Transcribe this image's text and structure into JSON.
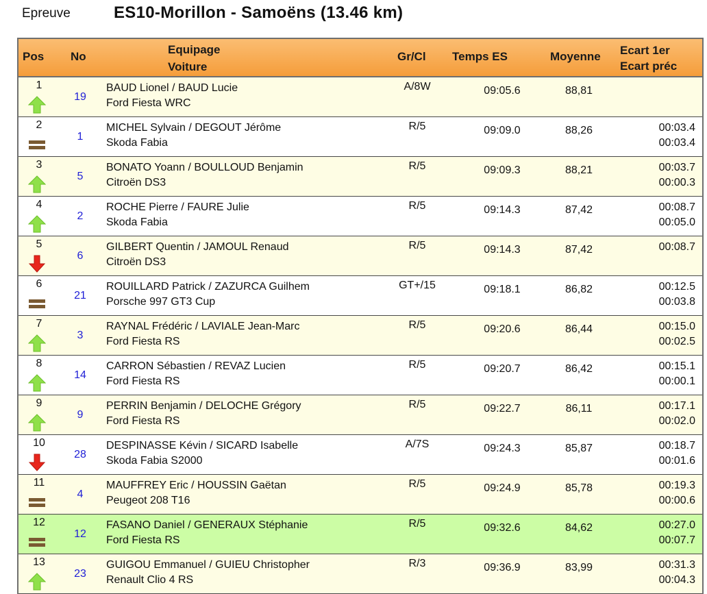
{
  "page": {
    "epreuve_label": "Epreuve",
    "stage_title": "ES10-Morillon - Samoëns (13.46 km)"
  },
  "header": {
    "pos": "Pos",
    "no": "No",
    "equipage": "Equipage",
    "voiture": "Voiture",
    "grcl": "Gr/Cl",
    "temps": "Temps ES",
    "moyenne": "Moyenne",
    "ecart_1er": "Ecart 1er",
    "ecart_prec": "Ecart préc"
  },
  "colors": {
    "header_bg": "#f7a848",
    "row_alt": "#fefde4",
    "row_highlight": "#ccfda5",
    "number_blue": "#1e1ed6",
    "arrow_up": "#8fe04a",
    "arrow_down": "#e8261c",
    "equal_icon": "#7a5a32"
  },
  "rows": [
    {
      "pos": "1",
      "no": "19",
      "crew": "BAUD Lionel / BAUD Lucie",
      "car": "Ford Fiesta WRC",
      "grcl": "A/8W",
      "temps": "09:05.6",
      "moyenne": "88,81",
      "ecart1": "",
      "ecart2": "",
      "trend": "up-arrow-icon"
    },
    {
      "pos": "2",
      "no": "1",
      "crew": "MICHEL Sylvain / DEGOUT Jérôme",
      "car": "Skoda Fabia",
      "grcl": "R/5",
      "temps": "09:09.0",
      "moyenne": "88,26",
      "ecart1": "00:03.4",
      "ecart2": "00:03.4",
      "trend": "equal-icon"
    },
    {
      "pos": "3",
      "no": "5",
      "crew": "BONATO Yoann / BOULLOUD Benjamin",
      "car": "Citroën DS3",
      "grcl": "R/5",
      "temps": "09:09.3",
      "moyenne": "88,21",
      "ecart1": "00:03.7",
      "ecart2": "00:00.3",
      "trend": "up-arrow-icon"
    },
    {
      "pos": "4",
      "no": "2",
      "crew": "ROCHE Pierre / FAURE Julie",
      "car": "Skoda Fabia",
      "grcl": "R/5",
      "temps": "09:14.3",
      "moyenne": "87,42",
      "ecart1": "00:08.7",
      "ecart2": "00:05.0",
      "trend": "up-arrow-icon"
    },
    {
      "pos": "5",
      "no": "6",
      "crew": "GILBERT Quentin / JAMOUL Renaud",
      "car": "Citroën DS3",
      "grcl": "R/5",
      "temps": "09:14.3",
      "moyenne": "87,42",
      "ecart1": "00:08.7",
      "ecart2": "",
      "trend": "down-arrow-icon"
    },
    {
      "pos": "6",
      "no": "21",
      "crew": "ROUILLARD Patrick / ZAZURCA Guilhem",
      "car": "Porsche 997 GT3 Cup",
      "grcl": "GT+/15",
      "temps": "09:18.1",
      "moyenne": "86,82",
      "ecart1": "00:12.5",
      "ecart2": "00:03.8",
      "trend": "equal-icon"
    },
    {
      "pos": "7",
      "no": "3",
      "crew": "RAYNAL Frédéric / LAVIALE Jean-Marc",
      "car": "Ford Fiesta RS",
      "grcl": "R/5",
      "temps": "09:20.6",
      "moyenne": "86,44",
      "ecart1": "00:15.0",
      "ecart2": "00:02.5",
      "trend": "up-arrow-icon"
    },
    {
      "pos": "8",
      "no": "14",
      "crew": "CARRON Sébastien / REVAZ Lucien",
      "car": "Ford Fiesta RS",
      "grcl": "R/5",
      "temps": "09:20.7",
      "moyenne": "86,42",
      "ecart1": "00:15.1",
      "ecart2": "00:00.1",
      "trend": "up-arrow-icon"
    },
    {
      "pos": "9",
      "no": "9",
      "crew": "PERRIN Benjamin / DELOCHE Grégory",
      "car": "Ford Fiesta RS",
      "grcl": "R/5",
      "temps": "09:22.7",
      "moyenne": "86,11",
      "ecart1": "00:17.1",
      "ecart2": "00:02.0",
      "trend": "up-arrow-icon"
    },
    {
      "pos": "10",
      "no": "28",
      "crew": "DESPINASSE Kévin / SICARD Isabelle",
      "car": "Skoda Fabia S2000",
      "grcl": "A/7S",
      "temps": "09:24.3",
      "moyenne": "85,87",
      "ecart1": "00:18.7",
      "ecart2": "00:01.6",
      "trend": "down-arrow-icon"
    },
    {
      "pos": "11",
      "no": "4",
      "crew": "MAUFFREY Eric / HOUSSIN Gaëtan",
      "car": "Peugeot 208 T16",
      "grcl": "R/5",
      "temps": "09:24.9",
      "moyenne": "85,78",
      "ecart1": "00:19.3",
      "ecart2": "00:00.6",
      "trend": "equal-icon"
    },
    {
      "pos": "12",
      "no": "12",
      "crew": "FASANO Daniel / GENERAUX Stéphanie",
      "car": "Ford Fiesta RS",
      "grcl": "R/5",
      "temps": "09:32.6",
      "moyenne": "84,62",
      "ecart1": "00:27.0",
      "ecart2": "00:07.7",
      "trend": "equal-icon",
      "highlight": true
    },
    {
      "pos": "13",
      "no": "23",
      "crew": "GUIGOU Emmanuel / GUIEU Christopher",
      "car": "Renault Clio 4 RS",
      "grcl": "R/3",
      "temps": "09:36.9",
      "moyenne": "83,99",
      "ecart1": "00:31.3",
      "ecart2": "00:04.3",
      "trend": "up-arrow-icon"
    }
  ]
}
